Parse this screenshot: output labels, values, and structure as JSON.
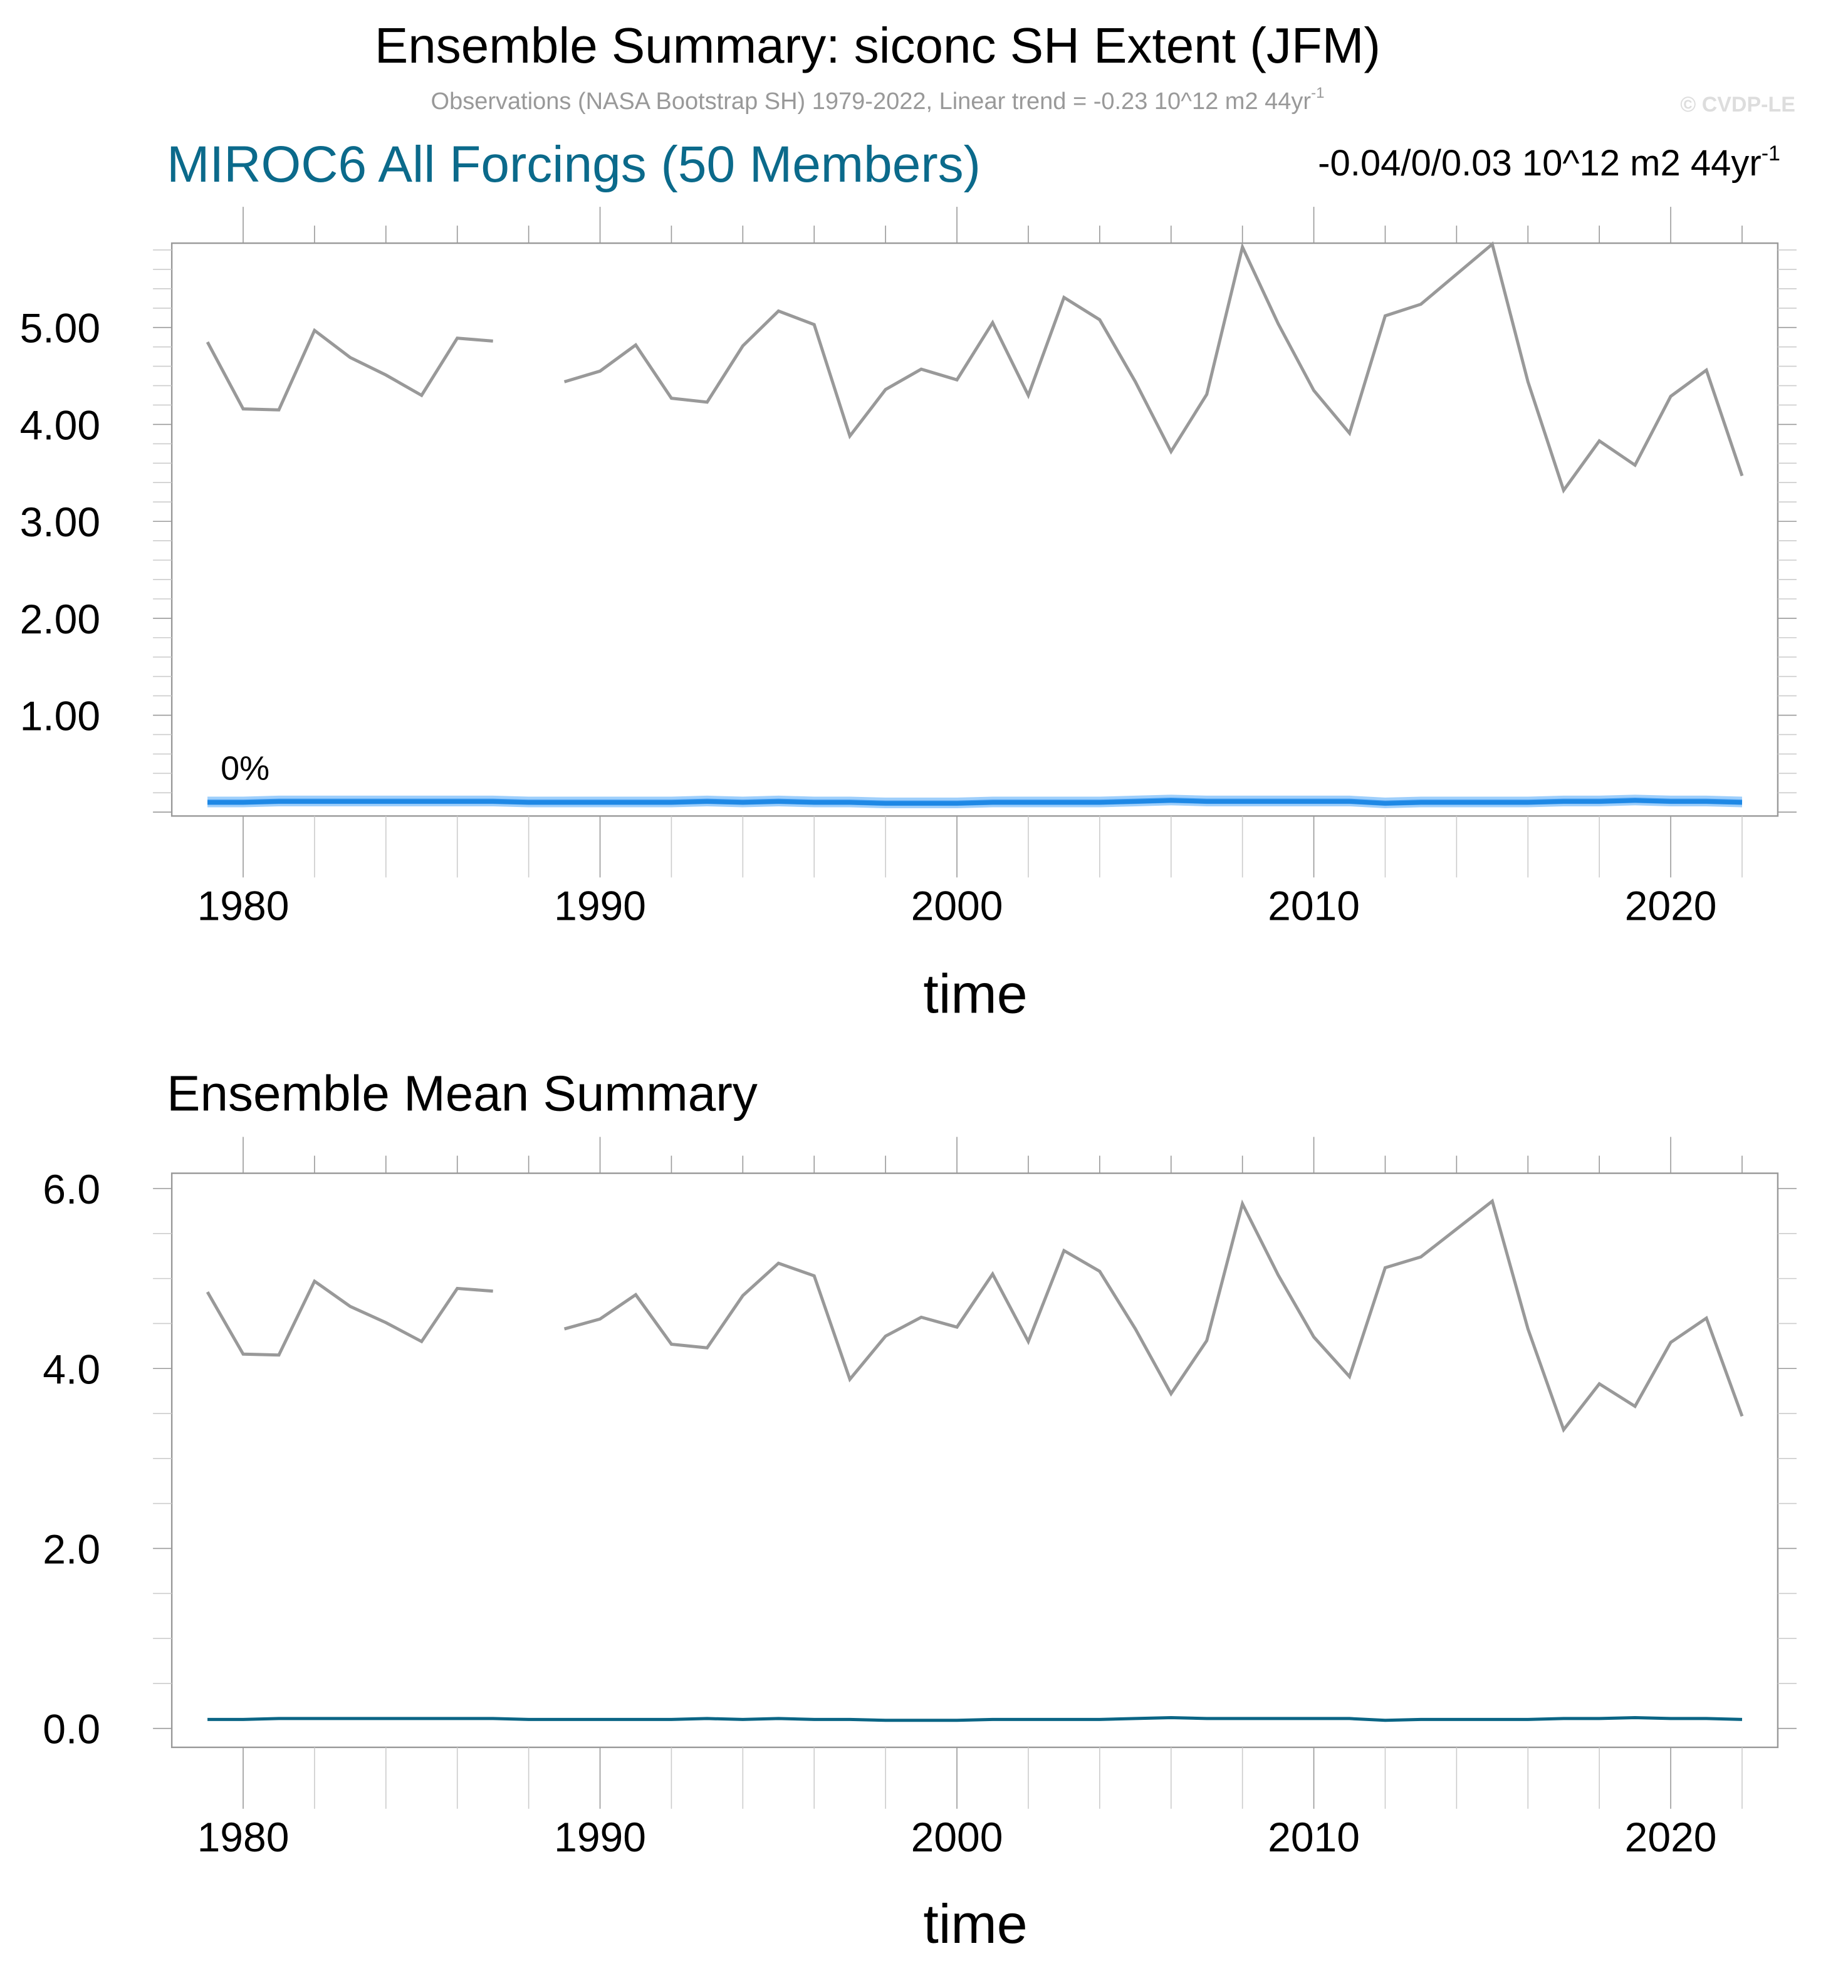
{
  "title": "Ensemble Summary: siconc SH Extent (JFM)",
  "subtitle": "Observations (NASA Bootstrap SH) 1979-2022, Linear trend = -0.23 10^12 m2 44yr",
  "subtitle_sup": "-1",
  "copyright": "© CVDP-LE",
  "colors": {
    "obs": "#999999",
    "band_outer": "#9fcffb",
    "band_inner": "#4aa3f5",
    "ens": "#1e88e5",
    "mean": "#0b6585",
    "model_title": "#0b6a8b"
  },
  "chart_data": [
    {
      "type": "line",
      "title": "MIROC6 All Forcings (50 Members)",
      "trend_label": "-0.04/0/0.03 10^12 m2 44yr",
      "trend_sup": "-1",
      "annotation": "0%",
      "xlabel": "time",
      "ylabel": "",
      "xlim": [
        1978,
        2023
      ],
      "ylim": [
        -0.04,
        5.87
      ],
      "xticks": [
        "1980",
        "1990",
        "2000",
        "2010",
        "2020"
      ],
      "yticks": [
        "1.00",
        "2.00",
        "3.00",
        "4.00",
        "5.00"
      ],
      "x": [
        1979,
        1980,
        1981,
        1982,
        1983,
        1984,
        1985,
        1986,
        1987,
        1988,
        1989,
        1990,
        1991,
        1992,
        1993,
        1994,
        1995,
        1996,
        1997,
        1998,
        1999,
        2000,
        2001,
        2002,
        2003,
        2004,
        2005,
        2006,
        2007,
        2008,
        2009,
        2010,
        2011,
        2012,
        2013,
        2014,
        2015,
        2016,
        2017,
        2018,
        2019,
        2020,
        2021,
        2022
      ],
      "series": [
        {
          "name": "Observations",
          "values": [
            4.85,
            4.16,
            4.15,
            4.97,
            4.69,
            4.51,
            4.3,
            4.89,
            4.86,
            null,
            4.44,
            4.55,
            4.82,
            4.27,
            4.23,
            4.81,
            5.17,
            5.03,
            3.88,
            4.36,
            4.57,
            4.46,
            5.05,
            4.3,
            5.31,
            5.08,
            4.44,
            3.72,
            4.31,
            5.83,
            5.04,
            4.35,
            3.91,
            5.12,
            5.24,
            5.55,
            5.86,
            4.44,
            3.32,
            3.83,
            3.58,
            4.29,
            4.56,
            3.47
          ]
        },
        {
          "name": "Ensemble mean",
          "values": [
            0.1,
            0.1,
            0.11,
            0.11,
            0.11,
            0.11,
            0.11,
            0.11,
            0.11,
            0.1,
            0.1,
            0.1,
            0.1,
            0.1,
            0.11,
            0.1,
            0.11,
            0.1,
            0.1,
            0.09,
            0.09,
            0.09,
            0.1,
            0.1,
            0.1,
            0.1,
            0.11,
            0.12,
            0.11,
            0.11,
            0.11,
            0.11,
            0.11,
            0.09,
            0.1,
            0.1,
            0.1,
            0.1,
            0.11,
            0.11,
            0.12,
            0.11,
            0.11,
            0.1
          ]
        }
      ]
    },
    {
      "type": "line",
      "title": "Ensemble Mean Summary",
      "xlabel": "time",
      "ylabel": "",
      "xlim": [
        1978,
        2023
      ],
      "ylim": [
        -0.21,
        6.17
      ],
      "xticks": [
        "1980",
        "1990",
        "2000",
        "2010",
        "2020"
      ],
      "yticks": [
        "0.0",
        "2.0",
        "4.0",
        "6.0"
      ],
      "series_ref": "same observations and ensemble mean as panel 1"
    }
  ]
}
